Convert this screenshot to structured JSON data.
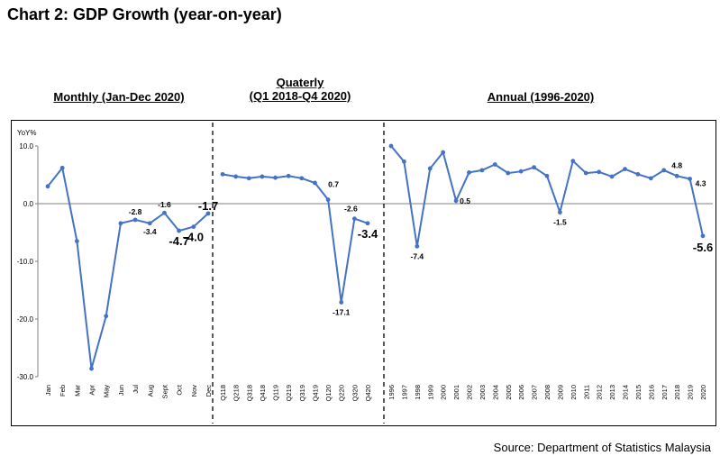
{
  "title": "Chart 2: GDP Growth (year-on-year)",
  "panel_titles": {
    "monthly": "Monthly (Jan-Dec 2020)",
    "quarterly_line1": "Quaterly",
    "quarterly_line2": "(Q1 2018-Q4 2020)",
    "annual": "Annual (1996-2020)"
  },
  "source": "Source: Department of Statistics Malaysia",
  "colors": {
    "line": "#4472c4",
    "axis": "#808080",
    "divider": "#000000"
  },
  "chart_data": [
    {
      "type": "line",
      "title": "Monthly (Jan-Dec 2020)",
      "ylabel": "YoY%",
      "ylim": [
        -30,
        10
      ],
      "yticks": [
        "10.0",
        "0.0",
        "-10.0",
        "-20.0",
        "-30.0"
      ],
      "categories": [
        "Jan",
        "Feb",
        "Mar",
        "Apr",
        "May",
        "Jun",
        "Jul",
        "Aug",
        "Sept",
        "Oct",
        "Nov",
        "Dec"
      ],
      "values": [
        3.0,
        6.2,
        -6.5,
        -28.6,
        -19.5,
        -3.4,
        -2.8,
        -3.4,
        -1.6,
        -4.7,
        -4.0,
        -1.7
      ],
      "labels": [
        {
          "index": 6,
          "text": "-2.8",
          "size": "small"
        },
        {
          "index": 7,
          "text": "-3.4",
          "size": "small"
        },
        {
          "index": 8,
          "text": "-1.6",
          "size": "small"
        },
        {
          "index": 9,
          "text": "-4.7",
          "size": "large"
        },
        {
          "index": 10,
          "text": "-4.0",
          "size": "large"
        },
        {
          "index": 11,
          "text": "-1.7",
          "size": "large"
        }
      ]
    },
    {
      "type": "line",
      "title": "(Q1 2018-Q4 2020)",
      "ylim": [
        -30,
        10
      ],
      "categories": [
        "Q118",
        "Q218",
        "Q318",
        "Q418",
        "Q119",
        "Q219",
        "Q319",
        "Q419",
        "Q120",
        "Q220",
        "Q320",
        "Q420"
      ],
      "values": [
        5.1,
        4.7,
        4.4,
        4.7,
        4.5,
        4.8,
        4.4,
        3.6,
        0.7,
        -17.1,
        -2.6,
        -3.4
      ],
      "labels": [
        {
          "index": 8,
          "text": "0.7",
          "size": "small"
        },
        {
          "index": 9,
          "text": "-17.1",
          "size": "small"
        },
        {
          "index": 10,
          "text": "-2.6",
          "size": "small"
        },
        {
          "index": 11,
          "text": "-3.4",
          "size": "large"
        }
      ]
    },
    {
      "type": "line",
      "title": "Annual (1996-2020)",
      "ylim": [
        -30,
        10
      ],
      "categories": [
        "1996",
        "1997",
        "1998",
        "1999",
        "2000",
        "2001",
        "2002",
        "2003",
        "2004",
        "2005",
        "2006",
        "2007",
        "2008",
        "2009",
        "2010",
        "2011",
        "2012",
        "2013",
        "2014",
        "2015",
        "2016",
        "2017",
        "2018",
        "2019",
        "2020"
      ],
      "values": [
        10.0,
        7.3,
        -7.4,
        6.1,
        8.9,
        0.5,
        5.4,
        5.8,
        6.8,
        5.3,
        5.6,
        6.3,
        4.8,
        -1.5,
        7.4,
        5.3,
        5.5,
        4.7,
        6.0,
        5.1,
        4.4,
        5.8,
        4.8,
        4.3,
        -5.6
      ],
      "labels": [
        {
          "index": 2,
          "text": "-7.4",
          "size": "small"
        },
        {
          "index": 5,
          "text": "0.5",
          "size": "small"
        },
        {
          "index": 13,
          "text": "-1.5",
          "size": "small"
        },
        {
          "index": 22,
          "text": "4.8",
          "size": "small"
        },
        {
          "index": 23,
          "text": "4.3",
          "size": "small"
        },
        {
          "index": 24,
          "text": "-5.6",
          "size": "large"
        }
      ]
    }
  ]
}
